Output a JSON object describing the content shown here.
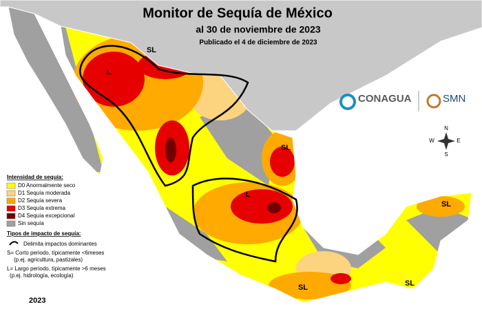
{
  "header": {
    "title": "Monitor de Sequía de México",
    "subtitle": "al 30 de noviembre de 2023",
    "published": "Publicado el 4 de diciembre de 2023"
  },
  "legend": {
    "title": "Intensidad de sequía:",
    "items": [
      {
        "label": "D0 Anormalmente seco",
        "color": "#ffff00"
      },
      {
        "label": "D1 Sequía moderada",
        "color": "#fcd37f"
      },
      {
        "label": "D2 Sequía severa",
        "color": "#ffaa00"
      },
      {
        "label": "D3 Sequía extrema",
        "color": "#e60000"
      },
      {
        "label": "D4 Sequía excepcional",
        "color": "#730000"
      },
      {
        "label": "Sin sequía",
        "color": "#a0a0a0"
      }
    ]
  },
  "impact": {
    "title": "Tipos de impacto de sequía:",
    "line": "Delimita impactos dominantes",
    "short": [
      "S= Corto periodo, típicamente <6meses",
      "(p.ej. agricultura, pastizales)"
    ],
    "long": [
      "L= Largo periodo, típicamente >6 meses",
      "(p.ej. hidrología, ecología)"
    ]
  },
  "map_labels": [
    "L",
    "SL",
    "SL",
    "L",
    "SL",
    "SL",
    "SL"
  ],
  "logos": {
    "conagua": "CONAGUA",
    "smn": "SMN"
  },
  "compass": {
    "n": "N",
    "s": "S",
    "e": "E",
    "w": "W"
  },
  "year": "2023"
}
